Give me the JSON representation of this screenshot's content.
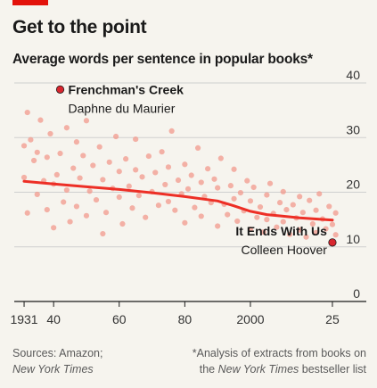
{
  "header": {
    "title": "Get to the point",
    "subtitle": "Average words per sentence in popular books*"
  },
  "footer": {
    "source_prefix": "Sources: Amazon;",
    "source_italic": "New York Times",
    "note_line1": "*Analysis of extracts from books on",
    "note_pre": "the ",
    "note_italic": "New York Times",
    "note_post": " bestseller list"
  },
  "colors": {
    "background": "#f6f4ee",
    "accent": "#e3120b",
    "points": "#f29a8c",
    "trend": "#ed2f26",
    "highlight": "#d8262e",
    "grid": "#cfcfcf"
  },
  "chart_data": {
    "type": "scatter",
    "x_range": [
      1928,
      2028
    ],
    "ylim": [
      0,
      40
    ],
    "x_ticks": [
      {
        "value": 1931,
        "label": "1931"
      },
      {
        "value": 1940,
        "label": "40"
      },
      {
        "value": 1960,
        "label": "60"
      },
      {
        "value": 1980,
        "label": "80"
      },
      {
        "value": 2000,
        "label": "2000"
      },
      {
        "value": 2025,
        "label": "25"
      }
    ],
    "y_ticks": [
      {
        "value": 0,
        "label": "0"
      },
      {
        "value": 10,
        "label": "10"
      },
      {
        "value": 20,
        "label": "20"
      },
      {
        "value": 30,
        "label": "30"
      },
      {
        "value": 40,
        "label": "40"
      }
    ],
    "grid": true,
    "trend_line": {
      "x": [
        1931,
        1940,
        1950,
        1960,
        1970,
        1980,
        1990,
        1995,
        2000,
        2005,
        2010,
        2015,
        2020,
        2025
      ],
      "y": [
        22.0,
        21.5,
        21.0,
        20.5,
        19.9,
        19.2,
        18.4,
        17.5,
        16.5,
        15.9,
        15.6,
        15.3,
        15.1,
        14.9
      ]
    },
    "highlights": [
      {
        "x": 1942,
        "y": 38.8,
        "title": "Frenchman's Creek",
        "author": "Daphne du Maurier"
      },
      {
        "x": 2025,
        "y": 10.8,
        "title": "It Ends With Us",
        "author": "Colleen Hoover"
      }
    ],
    "points": [
      [
        1931,
        28.5
      ],
      [
        1931,
        22.7
      ],
      [
        1932,
        16.2
      ],
      [
        1932,
        34.6
      ],
      [
        1933,
        29.6
      ],
      [
        1934,
        25.8
      ],
      [
        1935,
        19.6
      ],
      [
        1935,
        27.3
      ],
      [
        1936,
        33.2
      ],
      [
        1937,
        22.1
      ],
      [
        1938,
        16.8
      ],
      [
        1938,
        26.4
      ],
      [
        1939,
        30.7
      ],
      [
        1940,
        21.5
      ],
      [
        1940,
        13.5
      ],
      [
        1941,
        23.2
      ],
      [
        1942,
        27.1
      ],
      [
        1943,
        18.2
      ],
      [
        1944,
        31.8
      ],
      [
        1944,
        20.4
      ],
      [
        1945,
        14.6
      ],
      [
        1946,
        24.4
      ],
      [
        1947,
        29.2
      ],
      [
        1947,
        17.4
      ],
      [
        1948,
        22.6
      ],
      [
        1949,
        26.7
      ],
      [
        1950,
        15.7
      ],
      [
        1950,
        33.1
      ],
      [
        1951,
        20.2
      ],
      [
        1952,
        24.9
      ],
      [
        1953,
        18.6
      ],
      [
        1954,
        28.3
      ],
      [
        1955,
        22.3
      ],
      [
        1955,
        12.4
      ],
      [
        1956,
        16.3
      ],
      [
        1957,
        25.5
      ],
      [
        1958,
        20.7
      ],
      [
        1959,
        30.2
      ],
      [
        1960,
        19.1
      ],
      [
        1960,
        23.8
      ],
      [
        1961,
        14.2
      ],
      [
        1962,
        26.1
      ],
      [
        1963,
        21.1
      ],
      [
        1964,
        17.1
      ],
      [
        1965,
        24.1
      ],
      [
        1965,
        29.7
      ],
      [
        1966,
        19.4
      ],
      [
        1967,
        22.8
      ],
      [
        1968,
        15.4
      ],
      [
        1969,
        26.6
      ],
      [
        1970,
        20.1
      ],
      [
        1971,
        23.6
      ],
      [
        1972,
        17.6
      ],
      [
        1973,
        27.4
      ],
      [
        1974,
        21.4
      ],
      [
        1975,
        18.3
      ],
      [
        1975,
        24.6
      ],
      [
        1976,
        31.2
      ],
      [
        1977,
        16.7
      ],
      [
        1978,
        22.2
      ],
      [
        1979,
        19.7
      ],
      [
        1980,
        25.1
      ],
      [
        1980,
        14.4
      ],
      [
        1981,
        20.6
      ],
      [
        1982,
        23.1
      ],
      [
        1983,
        17.2
      ],
      [
        1984,
        28.1
      ],
      [
        1985,
        21.8
      ],
      [
        1985,
        15.6
      ],
      [
        1986,
        19.2
      ],
      [
        1987,
        24.3
      ],
      [
        1988,
        18.1
      ],
      [
        1989,
        22.4
      ],
      [
        1990,
        13.8
      ],
      [
        1990,
        20.8
      ],
      [
        1991,
        26.2
      ],
      [
        1992,
        17.8
      ],
      [
        1993,
        15.9
      ],
      [
        1994,
        21.2
      ],
      [
        1995,
        18.8
      ],
      [
        1995,
        24.2
      ],
      [
        1996,
        14.7
      ],
      [
        1997,
        19.9
      ],
      [
        1998,
        16.6
      ],
      [
        1999,
        22.1
      ],
      [
        2000,
        13.2
      ],
      [
        2000,
        18.4
      ],
      [
        2001,
        20.9
      ],
      [
        2002,
        15.4
      ],
      [
        2003,
        17.3
      ],
      [
        2004,
        12.7
      ],
      [
        2005,
        19.5
      ],
      [
        2005,
        15.0
      ],
      [
        2006,
        21.6
      ],
      [
        2007,
        16.1
      ],
      [
        2008,
        13.6
      ],
      [
        2009,
        18.1
      ],
      [
        2010,
        14.6
      ],
      [
        2010,
        20.1
      ],
      [
        2011,
        16.8
      ],
      [
        2012,
        12.3
      ],
      [
        2013,
        17.7
      ],
      [
        2014,
        15.3
      ],
      [
        2015,
        19.2
      ],
      [
        2015,
        13.1
      ],
      [
        2016,
        16.3
      ],
      [
        2017,
        11.8
      ],
      [
        2018,
        18.5
      ],
      [
        2019,
        14.2
      ],
      [
        2020,
        16.7
      ],
      [
        2020,
        12.6
      ],
      [
        2021,
        19.7
      ],
      [
        2022,
        15.1
      ],
      [
        2023,
        13.3
      ],
      [
        2024,
        17.4
      ],
      [
        2025,
        14.1
      ],
      [
        2026,
        16.2
      ],
      [
        2026,
        12.2
      ]
    ]
  }
}
